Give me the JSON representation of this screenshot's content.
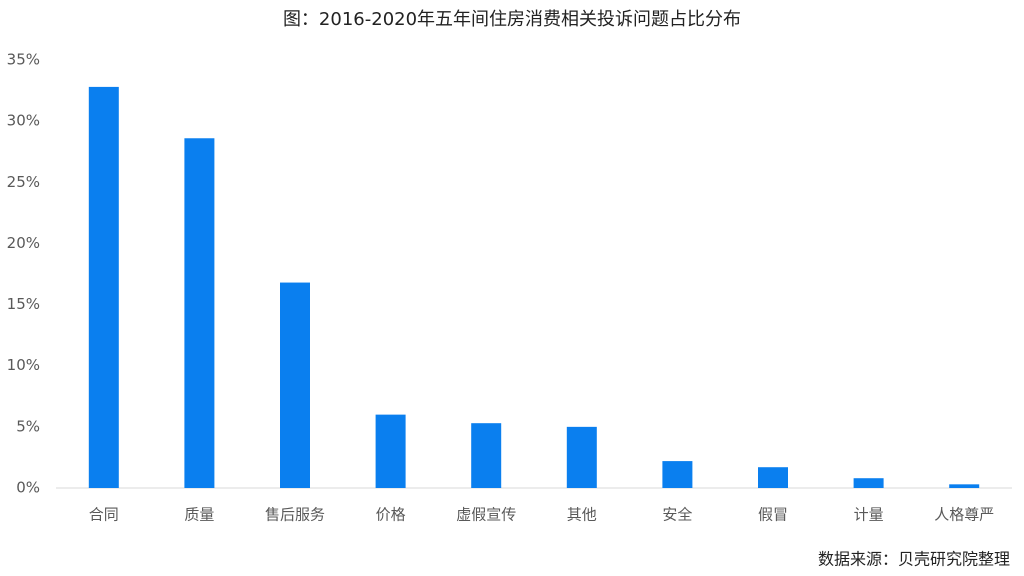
{
  "chart_data": {
    "type": "bar",
    "title": "图：2016-2020年五年间住房消费相关投诉问题占比分布",
    "source": "数据来源：贝壳研究院整理",
    "categories": [
      "合同",
      "质量",
      "售后服务",
      "价格",
      "虚假宣传",
      "其他",
      "安全",
      "假冒",
      "计量",
      "人格尊严"
    ],
    "values": [
      32.8,
      28.6,
      16.8,
      6.0,
      5.3,
      5.0,
      2.2,
      1.7,
      0.8,
      0.3
    ],
    "color": "#0a7fef",
    "ylim": [
      0,
      35
    ],
    "yticks": [
      {
        "value": 0,
        "label": "0%"
      },
      {
        "value": 5,
        "label": "5%"
      },
      {
        "value": 10,
        "label": "10%"
      },
      {
        "value": 15,
        "label": "15%"
      },
      {
        "value": 20,
        "label": "20%"
      },
      {
        "value": 25,
        "label": "25%"
      },
      {
        "value": 30,
        "label": "30%"
      },
      {
        "value": 35,
        "label": "35%"
      }
    ],
    "grid": false
  }
}
